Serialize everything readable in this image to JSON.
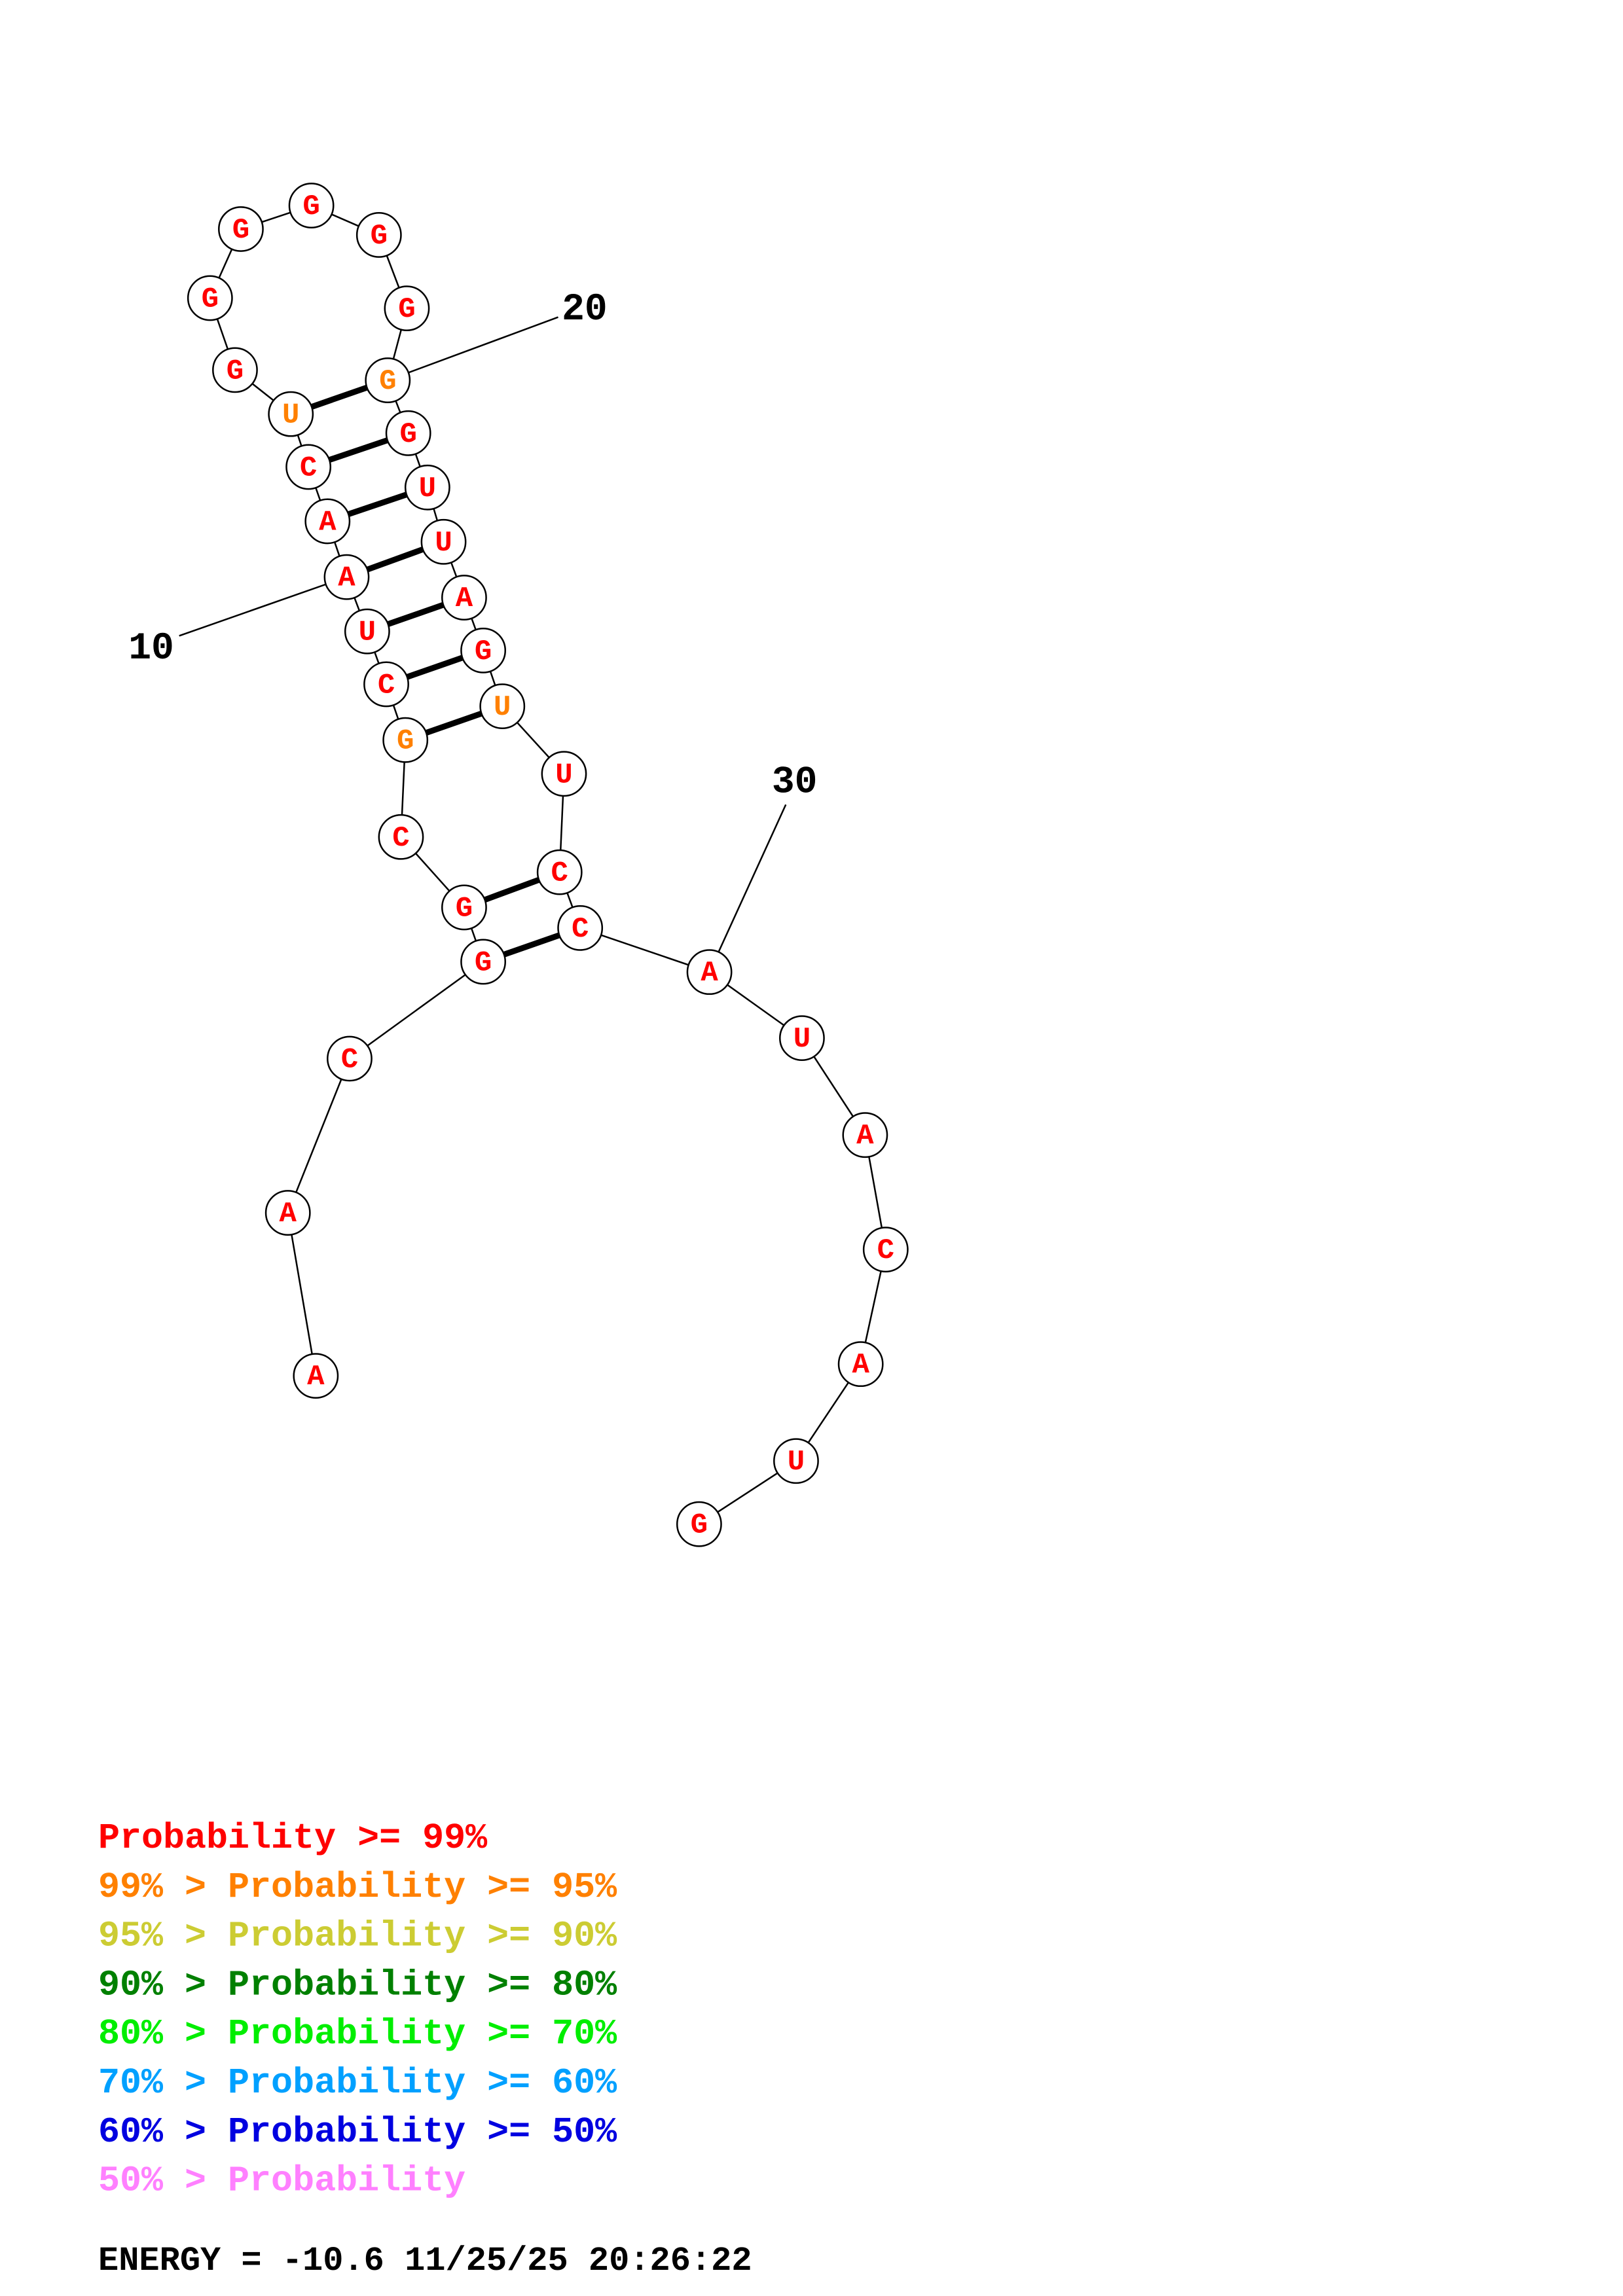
{
  "structure": {
    "nucleotides": [
      {
        "n": 1,
        "base": "A",
        "prob": "high"
      },
      {
        "n": 2,
        "base": "A",
        "prob": "high"
      },
      {
        "n": 3,
        "base": "C",
        "prob": "high"
      },
      {
        "n": 4,
        "base": "G",
        "prob": "high"
      },
      {
        "n": 5,
        "base": "G",
        "prob": "high"
      },
      {
        "n": 6,
        "base": "C",
        "prob": "high"
      },
      {
        "n": 7,
        "base": "G",
        "prob": "mid"
      },
      {
        "n": 8,
        "base": "C",
        "prob": "high"
      },
      {
        "n": 9,
        "base": "U",
        "prob": "high"
      },
      {
        "n": 10,
        "base": "A",
        "prob": "high"
      },
      {
        "n": 11,
        "base": "A",
        "prob": "high"
      },
      {
        "n": 12,
        "base": "C",
        "prob": "high"
      },
      {
        "n": 13,
        "base": "U",
        "prob": "mid"
      },
      {
        "n": 14,
        "base": "G",
        "prob": "high"
      },
      {
        "n": 15,
        "base": "G",
        "prob": "high"
      },
      {
        "n": 16,
        "base": "G",
        "prob": "high"
      },
      {
        "n": 17,
        "base": "G",
        "prob": "high"
      },
      {
        "n": 18,
        "base": "G",
        "prob": "high"
      },
      {
        "n": 19,
        "base": "G",
        "prob": "high"
      },
      {
        "n": 20,
        "base": "G",
        "prob": "mid"
      },
      {
        "n": 21,
        "base": "G",
        "prob": "high"
      },
      {
        "n": 22,
        "base": "U",
        "prob": "high"
      },
      {
        "n": 23,
        "base": "U",
        "prob": "high"
      },
      {
        "n": 24,
        "base": "A",
        "prob": "high"
      },
      {
        "n": 25,
        "base": "G",
        "prob": "high"
      },
      {
        "n": 26,
        "base": "U",
        "prob": "mid"
      },
      {
        "n": 27,
        "base": "U",
        "prob": "high"
      },
      {
        "n": 28,
        "base": "C",
        "prob": "high"
      },
      {
        "n": 29,
        "base": "C",
        "prob": "high"
      },
      {
        "n": 30,
        "base": "A",
        "prob": "high"
      },
      {
        "n": 31,
        "base": "U",
        "prob": "high"
      },
      {
        "n": 32,
        "base": "A",
        "prob": "high"
      },
      {
        "n": 33,
        "base": "C",
        "prob": "high"
      },
      {
        "n": 34,
        "base": "A",
        "prob": "high"
      },
      {
        "n": 35,
        "base": "U",
        "prob": "high"
      },
      {
        "n": 36,
        "base": "G",
        "prob": "high"
      }
    ],
    "pairs": [
      [
        4,
        29
      ],
      [
        5,
        28
      ],
      [
        7,
        26
      ],
      [
        8,
        25
      ],
      [
        9,
        24
      ],
      [
        10,
        23
      ],
      [
        11,
        22
      ],
      [
        12,
        21
      ],
      [
        13,
        20
      ]
    ],
    "position_labels": [
      {
        "text": "10",
        "n": 10
      },
      {
        "text": "20",
        "n": 20
      },
      {
        "text": "30",
        "n": 30
      }
    ]
  },
  "colors": {
    "high": "#ff0000",
    "mid": "#ff8000",
    "line": "#000000"
  },
  "legend": [
    {
      "prefix": "",
      "text": "Probability >= 99%",
      "color": "#ff0000"
    },
    {
      "prefix": "99% > ",
      "text": "Probability >= 95%",
      "color": "#ff8000"
    },
    {
      "prefix": "95% > ",
      "text": "Probability >= 90%",
      "color": "#cccc33"
    },
    {
      "prefix": "90% > ",
      "text": "Probability >= 80%",
      "color": "#008000"
    },
    {
      "prefix": "80% > ",
      "text": "Probability >= 70%",
      "color": "#00ee00"
    },
    {
      "prefix": "70% > ",
      "text": "Probability >= 60%",
      "color": "#00a0ff"
    },
    {
      "prefix": "60% > ",
      "text": "Probability >= 50%",
      "color": "#0000e0"
    },
    {
      "prefix": "50% > ",
      "text": "Probability",
      "color": "#ff80ff"
    }
  ],
  "footer": "ENERGY = -10.6  11/25/25 20:26:22"
}
